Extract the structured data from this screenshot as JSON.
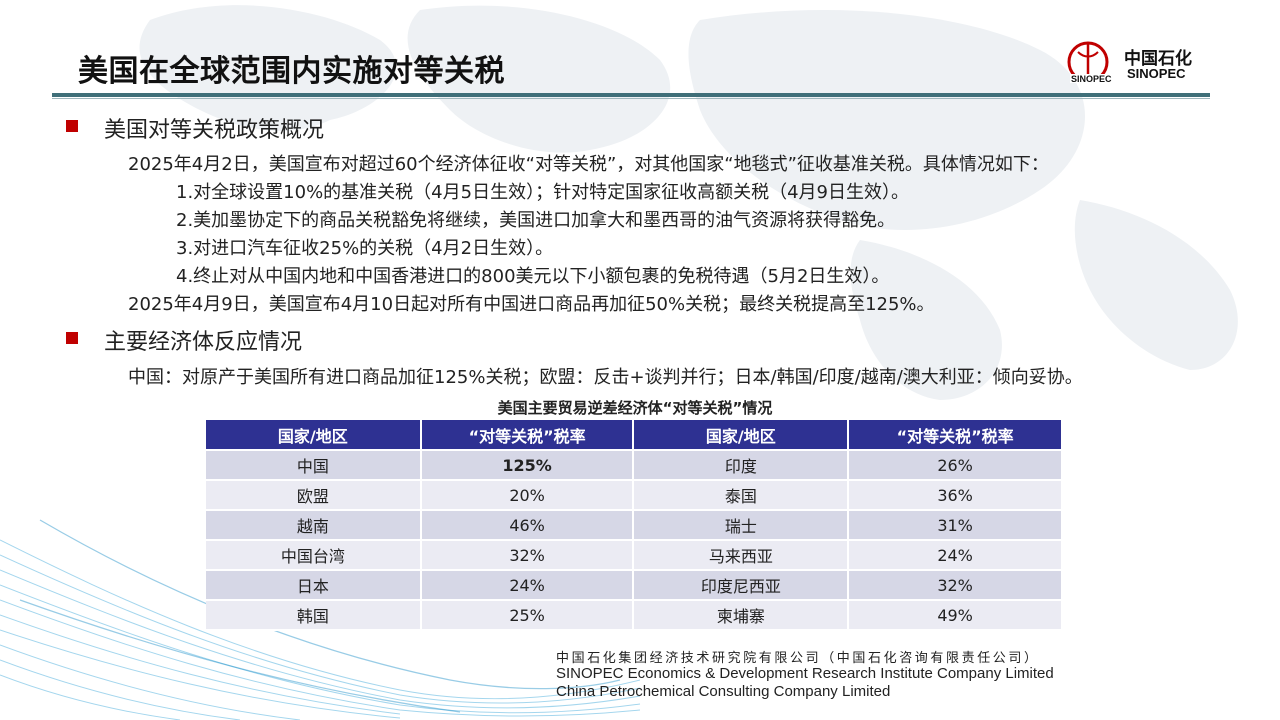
{
  "slide": {
    "title": "美国在全球范围内实施对等关税"
  },
  "logo": {
    "cn": "中国石化",
    "en": "SINOPEC"
  },
  "section1": {
    "heading": "美国对等关税政策概况",
    "intro": "2025年4月2日，美国宣布对超过60个经济体征收“对等关税”，对其他国家“地毯式”征收基准关税。具体情况如下：",
    "items": [
      "1.对全球设置10%的基准关税（4月5日生效）；针对特定国家征收高额关税（4月9日生效）。",
      "2.美加墨协定下的商品关税豁免将继续，美国进口加拿大和墨西哥的油气资源将获得豁免。",
      "3.对进口汽车征收25%的关税（4月2日生效）。",
      "4.终止对从中国内地和中国香港进口的800美元以下小额包裹的免税待遇（5月2日生效）。"
    ],
    "followup": "2025年4月9日，美国宣布4月10日起对所有中国进口商品再加征50%关税；最终关税提高至125%。"
  },
  "section2": {
    "heading": "主要经济体反应情况",
    "text": "中国：对原产于美国所有进口商品加征125%关税；欧盟：反击+谈判并行；日本/韩国/印度/越南/澳大利亚：倾向妥协。"
  },
  "table": {
    "title": "美国主要贸易逆差经济体“对等关税”情况",
    "headers": [
      "国家/地区",
      "“对等关税”税率",
      "国家/地区",
      "“对等关税”税率"
    ],
    "rows": [
      [
        "中国",
        "125%",
        "印度",
        "26%"
      ],
      [
        "欧盟",
        "20%",
        "泰国",
        "36%"
      ],
      [
        "越南",
        "46%",
        "瑞士",
        "31%"
      ],
      [
        "中国台湾",
        "32%",
        "马来西亚",
        "24%"
      ],
      [
        "日本",
        "24%",
        "印度尼西亚",
        "32%"
      ],
      [
        "韩国",
        "25%",
        "柬埔寨",
        "49%"
      ]
    ]
  },
  "footer": {
    "cn": "中国石化集团经济技术研究院有限公司（中国石化咨询有限责任公司）",
    "en1": "SINOPEC Economics & Development Research Institute Company Limited",
    "en2": "China Petrochemical Consulting Company Limited"
  },
  "colors": {
    "bullet": "#c00000",
    "table_header": "#2e3192",
    "rule": "#3f6f79"
  }
}
